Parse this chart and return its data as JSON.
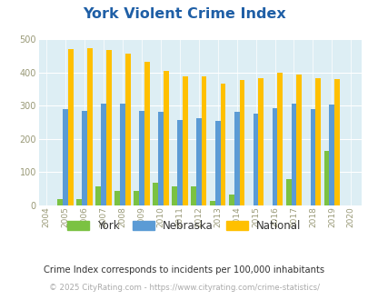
{
  "title": "York Violent Crime Index",
  "years": [
    2004,
    2005,
    2006,
    2007,
    2008,
    2009,
    2010,
    2011,
    2012,
    2013,
    2014,
    2015,
    2016,
    2017,
    2018,
    2019,
    2020
  ],
  "york": [
    0,
    18,
    18,
    57,
    43,
    44,
    68,
    57,
    57,
    15,
    32,
    0,
    0,
    80,
    0,
    165,
    0
  ],
  "nebraska": [
    0,
    290,
    285,
    305,
    305,
    285,
    280,
    257,
    263,
    253,
    280,
    275,
    291,
    306,
    289,
    303,
    0
  ],
  "national": [
    0,
    470,
    473,
    467,
    455,
    432,
    405,
    388,
    388,
    367,
    378,
    383,
    398,
    394,
    381,
    380,
    0
  ],
  "york_color": "#7bc242",
  "nebraska_color": "#5b9bd5",
  "national_color": "#ffc000",
  "bg_color": "#ddeef4",
  "ylabel_max": 500,
  "yticks": [
    0,
    100,
    200,
    300,
    400,
    500
  ],
  "subtitle": "Crime Index corresponds to incidents per 100,000 inhabitants",
  "footer": "© 2025 CityRating.com - https://www.cityrating.com/crime-statistics/",
  "bar_width": 0.28,
  "title_color": "#1f5fa6",
  "tick_color": "#999977",
  "subtitle_color": "#333333",
  "footer_color": "#aaaaaa"
}
